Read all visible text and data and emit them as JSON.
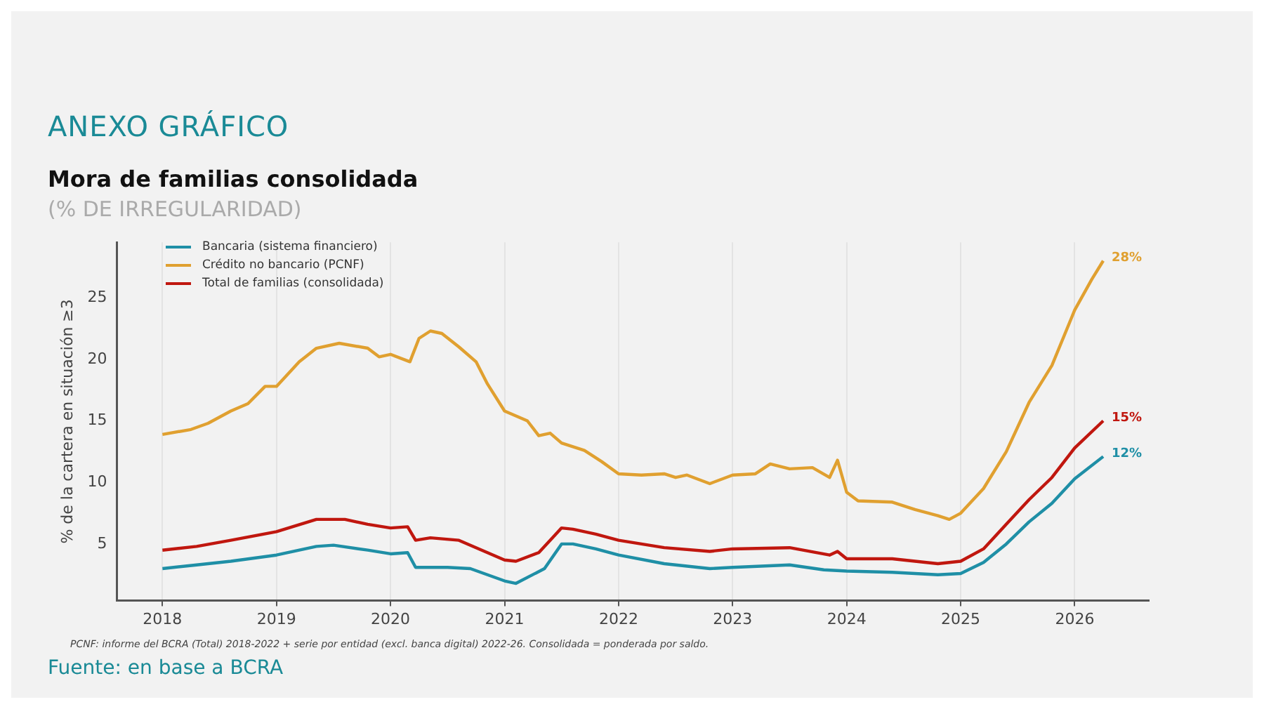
{
  "chart_data": {
    "type": "line",
    "title": "ANEXO GRÁFICO",
    "subtitle": "Mora de familias consolidada",
    "ylabel": "% de la cartera en situación ≥3",
    "annotations": [
      "(% DE IRREGULARIDAD)",
      "PCNF: informe del BCRA (Total) 2018-2022 + serie por entidad (excl. banca digital) 2022-26. Consolidada = ponderada por saldo.",
      "Fuente: en base a BCRA"
    ],
    "xlim": [
      2017.6,
      2026.65
    ],
    "xticks": [
      2018,
      2019,
      2020,
      2021,
      2022,
      2023,
      2024,
      2025,
      2026
    ],
    "ylim": [
      0.4,
      29.5
    ],
    "yticks": [
      5,
      10,
      15,
      20,
      25
    ],
    "grid": "x",
    "legend": "top left",
    "marker": "none",
    "line_style": "solid",
    "series": [
      {
        "name": "Bancaria (sistema financiero)",
        "color": "#1f8fa6",
        "x": [
          2018.0,
          2018.3,
          2018.6,
          2019.0,
          2019.35,
          2019.5,
          2019.8,
          2020.0,
          2020.15,
          2020.22,
          2020.5,
          2020.7,
          2021.0,
          2021.1,
          2021.35,
          2021.5,
          2021.6,
          2021.8,
          2022.0,
          2022.4,
          2022.8,
          2023.0,
          2023.5,
          2023.8,
          2024.0,
          2024.4,
          2024.8,
          2025.0,
          2025.2,
          2025.4,
          2025.6,
          2025.8,
          2026.0,
          2026.25
        ],
        "values": [
          3.0,
          3.3,
          3.6,
          4.1,
          4.8,
          4.9,
          4.5,
          4.2,
          4.3,
          3.1,
          3.1,
          3.0,
          2.0,
          1.8,
          3.0,
          5.0,
          5.0,
          4.6,
          4.1,
          3.4,
          3.0,
          3.1,
          3.3,
          2.9,
          2.8,
          2.7,
          2.5,
          2.6,
          3.5,
          5.0,
          6.8,
          8.3,
          10.3,
          12.1
        ],
        "value_labels": [
          null,
          null,
          null,
          null,
          null,
          null,
          null,
          null,
          null,
          null,
          null,
          null,
          null,
          null,
          null,
          null,
          null,
          null,
          null,
          null,
          null,
          null,
          null,
          null,
          null,
          null,
          null,
          null,
          null,
          null,
          null,
          null,
          null,
          "12%"
        ]
      },
      {
        "name": "Crédito no bancario (PCNF)",
        "color": "#e0a030",
        "x": [
          2018.0,
          2018.25,
          2018.4,
          2018.6,
          2018.75,
          2018.9,
          2019.0,
          2019.2,
          2019.35,
          2019.55,
          2019.8,
          2019.9,
          2020.0,
          2020.17,
          2020.25,
          2020.35,
          2020.45,
          2020.6,
          2020.75,
          2020.85,
          2021.0,
          2021.2,
          2021.3,
          2021.4,
          2021.5,
          2021.7,
          2021.85,
          2022.0,
          2022.2,
          2022.4,
          2022.5,
          2022.6,
          2022.8,
          2023.0,
          2023.2,
          2023.33,
          2023.5,
          2023.7,
          2023.85,
          2023.92,
          2024.0,
          2024.1,
          2024.4,
          2024.6,
          2024.8,
          2024.9,
          2025.0,
          2025.2,
          2025.4,
          2025.5,
          2025.6,
          2025.8,
          2026.0,
          2026.15,
          2026.25
        ],
        "values": [
          13.9,
          14.3,
          14.8,
          15.8,
          16.4,
          17.8,
          17.8,
          19.8,
          20.9,
          21.3,
          20.9,
          20.2,
          20.4,
          19.8,
          21.7,
          22.3,
          22.1,
          21.0,
          19.8,
          18.0,
          15.8,
          15.0,
          13.8,
          14.0,
          13.2,
          12.6,
          11.7,
          10.7,
          10.6,
          10.7,
          10.4,
          10.6,
          9.9,
          10.6,
          10.7,
          11.5,
          11.1,
          11.2,
          10.4,
          11.8,
          9.2,
          8.5,
          8.4,
          7.8,
          7.3,
          7.0,
          7.5,
          9.5,
          12.5,
          14.5,
          16.5,
          19.5,
          24.0,
          26.5,
          28.0
        ],
        "value_labels": [
          null,
          null,
          null,
          null,
          null,
          null,
          null,
          null,
          null,
          null,
          null,
          null,
          null,
          null,
          null,
          null,
          null,
          null,
          null,
          null,
          null,
          null,
          null,
          null,
          null,
          null,
          null,
          null,
          null,
          null,
          null,
          null,
          null,
          null,
          null,
          null,
          null,
          null,
          null,
          null,
          null,
          null,
          null,
          null,
          null,
          null,
          null,
          null,
          null,
          null,
          null,
          null,
          null,
          null,
          "28%"
        ]
      },
      {
        "name": "Total de familias (consolidada)",
        "color": "#c0170f",
        "x": [
          2018.0,
          2018.3,
          2018.6,
          2019.0,
          2019.35,
          2019.6,
          2019.8,
          2020.0,
          2020.15,
          2020.22,
          2020.35,
          2020.6,
          2020.8,
          2021.0,
          2021.1,
          2021.3,
          2021.5,
          2021.6,
          2021.8,
          2022.0,
          2022.4,
          2022.8,
          2023.0,
          2023.5,
          2023.85,
          2023.92,
          2024.0,
          2024.4,
          2024.8,
          2025.0,
          2025.2,
          2025.4,
          2025.6,
          2025.8,
          2026.0,
          2026.25
        ],
        "values": [
          4.5,
          4.8,
          5.3,
          6.0,
          7.0,
          7.0,
          6.6,
          6.3,
          6.4,
          5.3,
          5.5,
          5.3,
          4.5,
          3.7,
          3.6,
          4.3,
          6.3,
          6.2,
          5.8,
          5.3,
          4.7,
          4.4,
          4.6,
          4.7,
          4.1,
          4.4,
          3.8,
          3.8,
          3.4,
          3.6,
          4.6,
          6.6,
          8.6,
          10.4,
          12.8,
          15.0
        ],
        "value_labels": [
          null,
          null,
          null,
          null,
          null,
          null,
          null,
          null,
          null,
          null,
          null,
          null,
          null,
          null,
          null,
          null,
          null,
          null,
          null,
          null,
          null,
          null,
          null,
          null,
          null,
          null,
          null,
          null,
          null,
          null,
          null,
          null,
          null,
          null,
          null,
          "15%"
        ]
      }
    ]
  }
}
